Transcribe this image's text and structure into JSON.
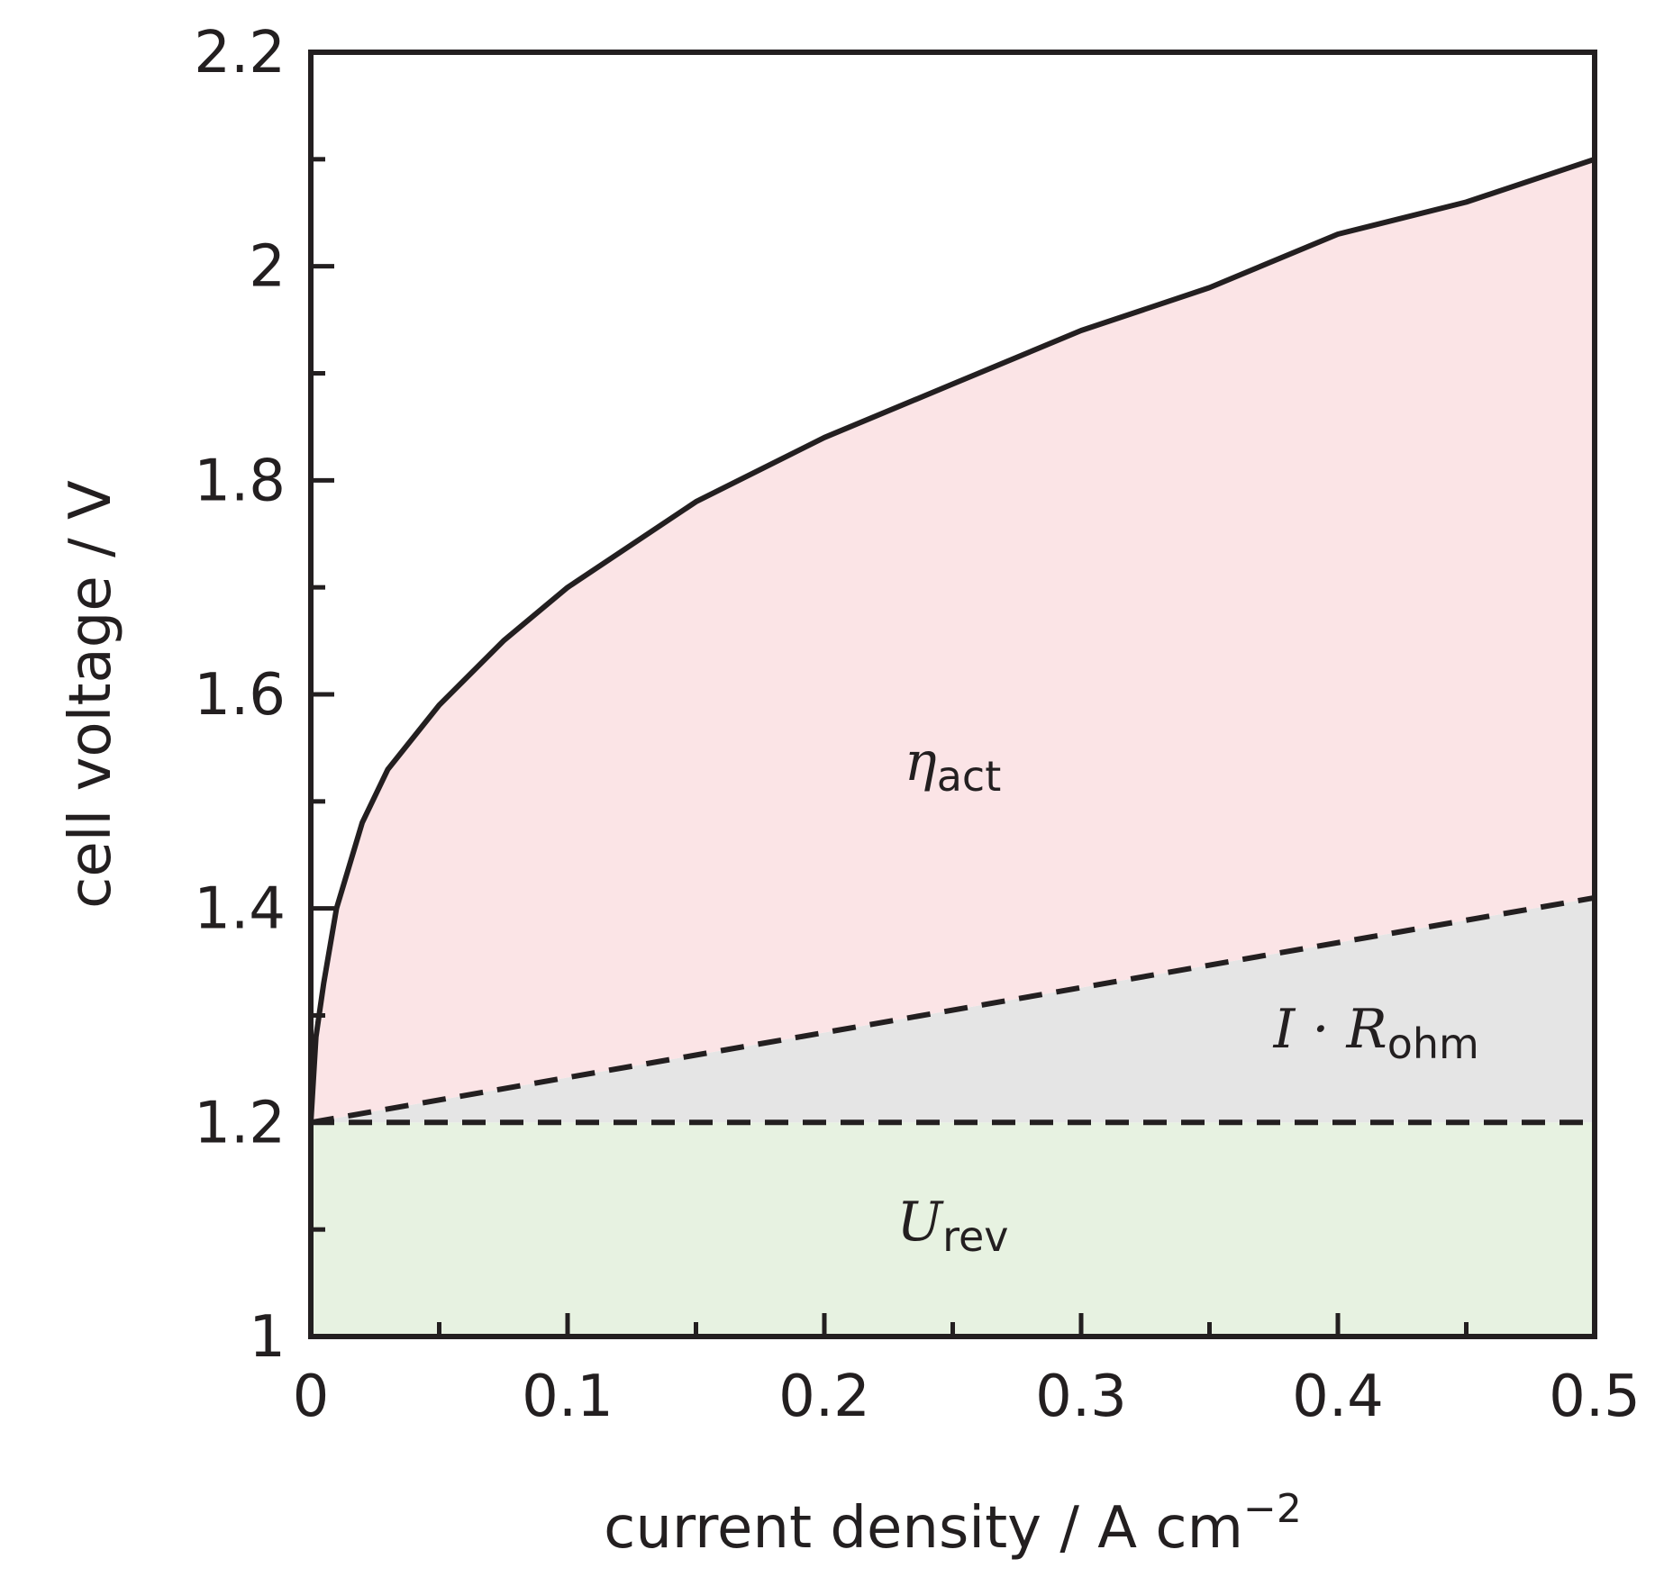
{
  "chart_data": {
    "type": "area",
    "xlabel_main": "current density / A cm",
    "xlabel_sup": "−2",
    "ylabel": "cell voltage / V",
    "xlim": [
      0,
      0.5
    ],
    "ylim": [
      1,
      2.2
    ],
    "x_ticks": [
      0,
      0.1,
      0.2,
      0.3,
      0.4,
      0.5
    ],
    "x_tick_labels": [
      "0",
      "0.1",
      "0.2",
      "0.3",
      "0.4",
      "0.5"
    ],
    "x_minor_ticks": [
      0.05,
      0.15,
      0.25,
      0.35,
      0.45
    ],
    "y_ticks": [
      1,
      1.2,
      1.4,
      1.6,
      1.8,
      2,
      2.2
    ],
    "y_tick_labels": [
      "1",
      "1.2",
      "1.4",
      "1.6",
      "1.8",
      "2",
      "2.2"
    ],
    "y_minor_ticks": [
      1.1,
      1.3,
      1.5,
      1.7,
      1.9,
      2.1
    ],
    "grid": false,
    "series": [
      {
        "style": "solid",
        "x": [
          0,
          0.002,
          0.005,
          0.01,
          0.02,
          0.03,
          0.05,
          0.075,
          0.1,
          0.15,
          0.2,
          0.25,
          0.3,
          0.35,
          0.4,
          0.45,
          0.5
        ],
        "y": [
          1.2,
          1.28,
          1.33,
          1.4,
          1.48,
          1.53,
          1.59,
          1.65,
          1.7,
          1.78,
          1.84,
          1.89,
          1.94,
          1.98,
          2.03,
          2.06,
          2.1
        ]
      },
      {
        "style": "dashed",
        "x": [
          0,
          0.5
        ],
        "y": [
          1.2,
          1.41
        ]
      },
      {
        "style": "dashed",
        "x": [
          0,
          0.5
        ],
        "y": [
          1.2,
          1.2
        ]
      }
    ],
    "regions": [
      {
        "label_main": "η",
        "label_sub": "act",
        "color": "#fbe4e6"
      },
      {
        "label_main": "I · R",
        "label_sub": "ohm",
        "color": "#e5e5e5"
      },
      {
        "label_main": "U",
        "label_sub": "rev",
        "color": "#e7f2e1"
      }
    ],
    "line_color": "#231f20"
  }
}
